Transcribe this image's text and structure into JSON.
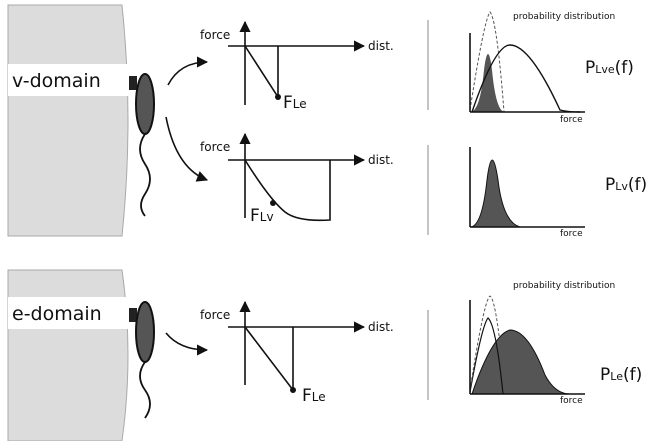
{
  "panels": [
    {
      "domain": "v-domain",
      "plots": [
        {
          "y_label": "force",
          "x_label": "dist.",
          "point": {
            "main": "F",
            "sub": "Le"
          }
        },
        {
          "y_label": "force",
          "x_label": "dist.",
          "point": {
            "main": "F",
            "sub": "Lv"
          }
        }
      ],
      "distributions": [
        {
          "title": "probability distribution",
          "x_label": "force",
          "name": {
            "main": "P",
            "sub": "Lve",
            "suffix": "(f)"
          }
        },
        {
          "x_label": "force",
          "name": {
            "main": "P",
            "sub": "Lv",
            "suffix": "(f)"
          }
        }
      ]
    },
    {
      "domain": "e-domain",
      "plots": [
        {
          "y_label": "force",
          "x_label": "dist.",
          "point": {
            "main": "F",
            "sub": "Le"
          }
        }
      ],
      "distributions": [
        {
          "title": "probability distribution",
          "x_label": "force",
          "name": {
            "main": "P",
            "sub": "Le",
            "suffix": "(f)"
          }
        }
      ]
    }
  ]
}
